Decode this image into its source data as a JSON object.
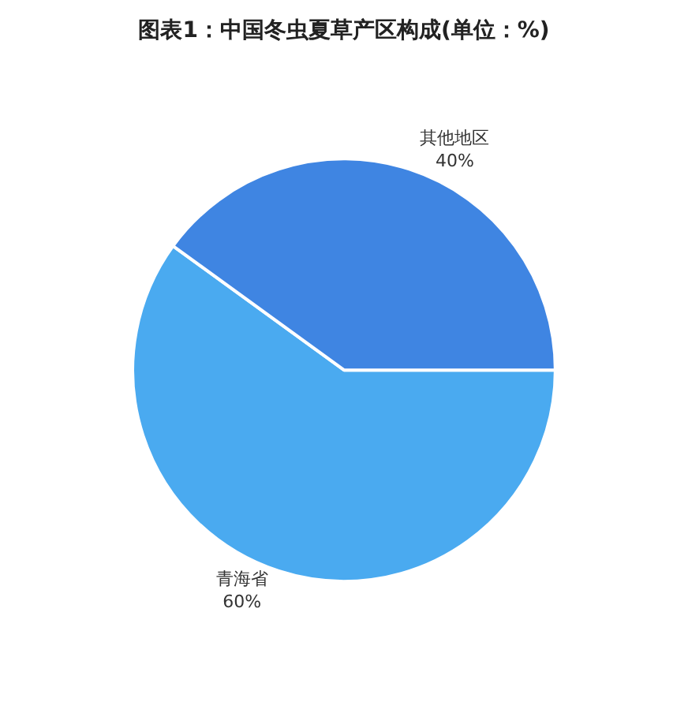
{
  "chart_data": {
    "type": "pie",
    "title": "图表1：中国冬虫夏草产区构成(单位：%)",
    "categories": [
      "青海省",
      "其他地区"
    ],
    "values": [
      60,
      40
    ],
    "colors": [
      "#4aaaf0",
      "#3f85e2"
    ],
    "value_labels": [
      "60%",
      "40%"
    ],
    "legend": false
  }
}
